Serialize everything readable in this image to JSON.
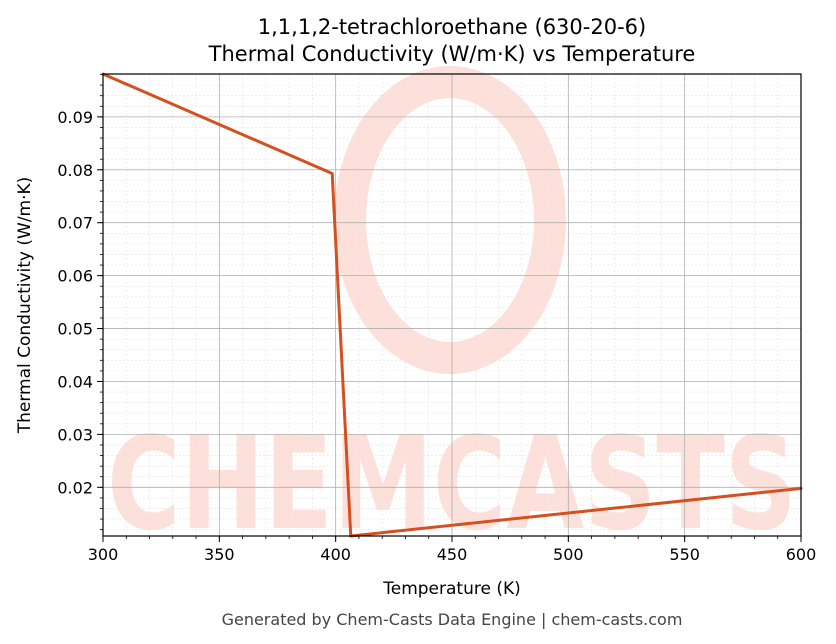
{
  "chart_data": {
    "type": "line",
    "title": "1,1,1,2-tetrachloroethane (630-20-6)",
    "subtitle": "Thermal Conductivity (W/m·K) vs Temperature",
    "xlabel": "Temperature (K)",
    "ylabel": "Thermal Conductivity (W/m·K)",
    "xlim": [
      300,
      600
    ],
    "ylim": [
      0.0108,
      0.0981
    ],
    "xticks": [
      300,
      350,
      400,
      450,
      500,
      550,
      600
    ],
    "yticks": [
      0.02,
      0.03,
      0.04,
      0.05,
      0.06,
      0.07,
      0.08,
      0.09
    ],
    "xtick_labels": [
      "300",
      "350",
      "400",
      "450",
      "500",
      "550",
      "600"
    ],
    "ytick_labels": [
      "0.02",
      "0.03",
      "0.04",
      "0.05",
      "0.06",
      "0.07",
      "0.08",
      "0.09"
    ],
    "grid": true,
    "minor_grid": true,
    "series": [
      {
        "color": "#d4511f",
        "x": [
          300,
          398.5,
          406.5,
          600
        ],
        "y": [
          0.0981,
          0.0793,
          0.0108,
          0.0198
        ]
      }
    ]
  },
  "watermark": {
    "text": "CHEMCASTS"
  },
  "footer": "Generated by Chem-Casts Data Engine | chem-casts.com"
}
